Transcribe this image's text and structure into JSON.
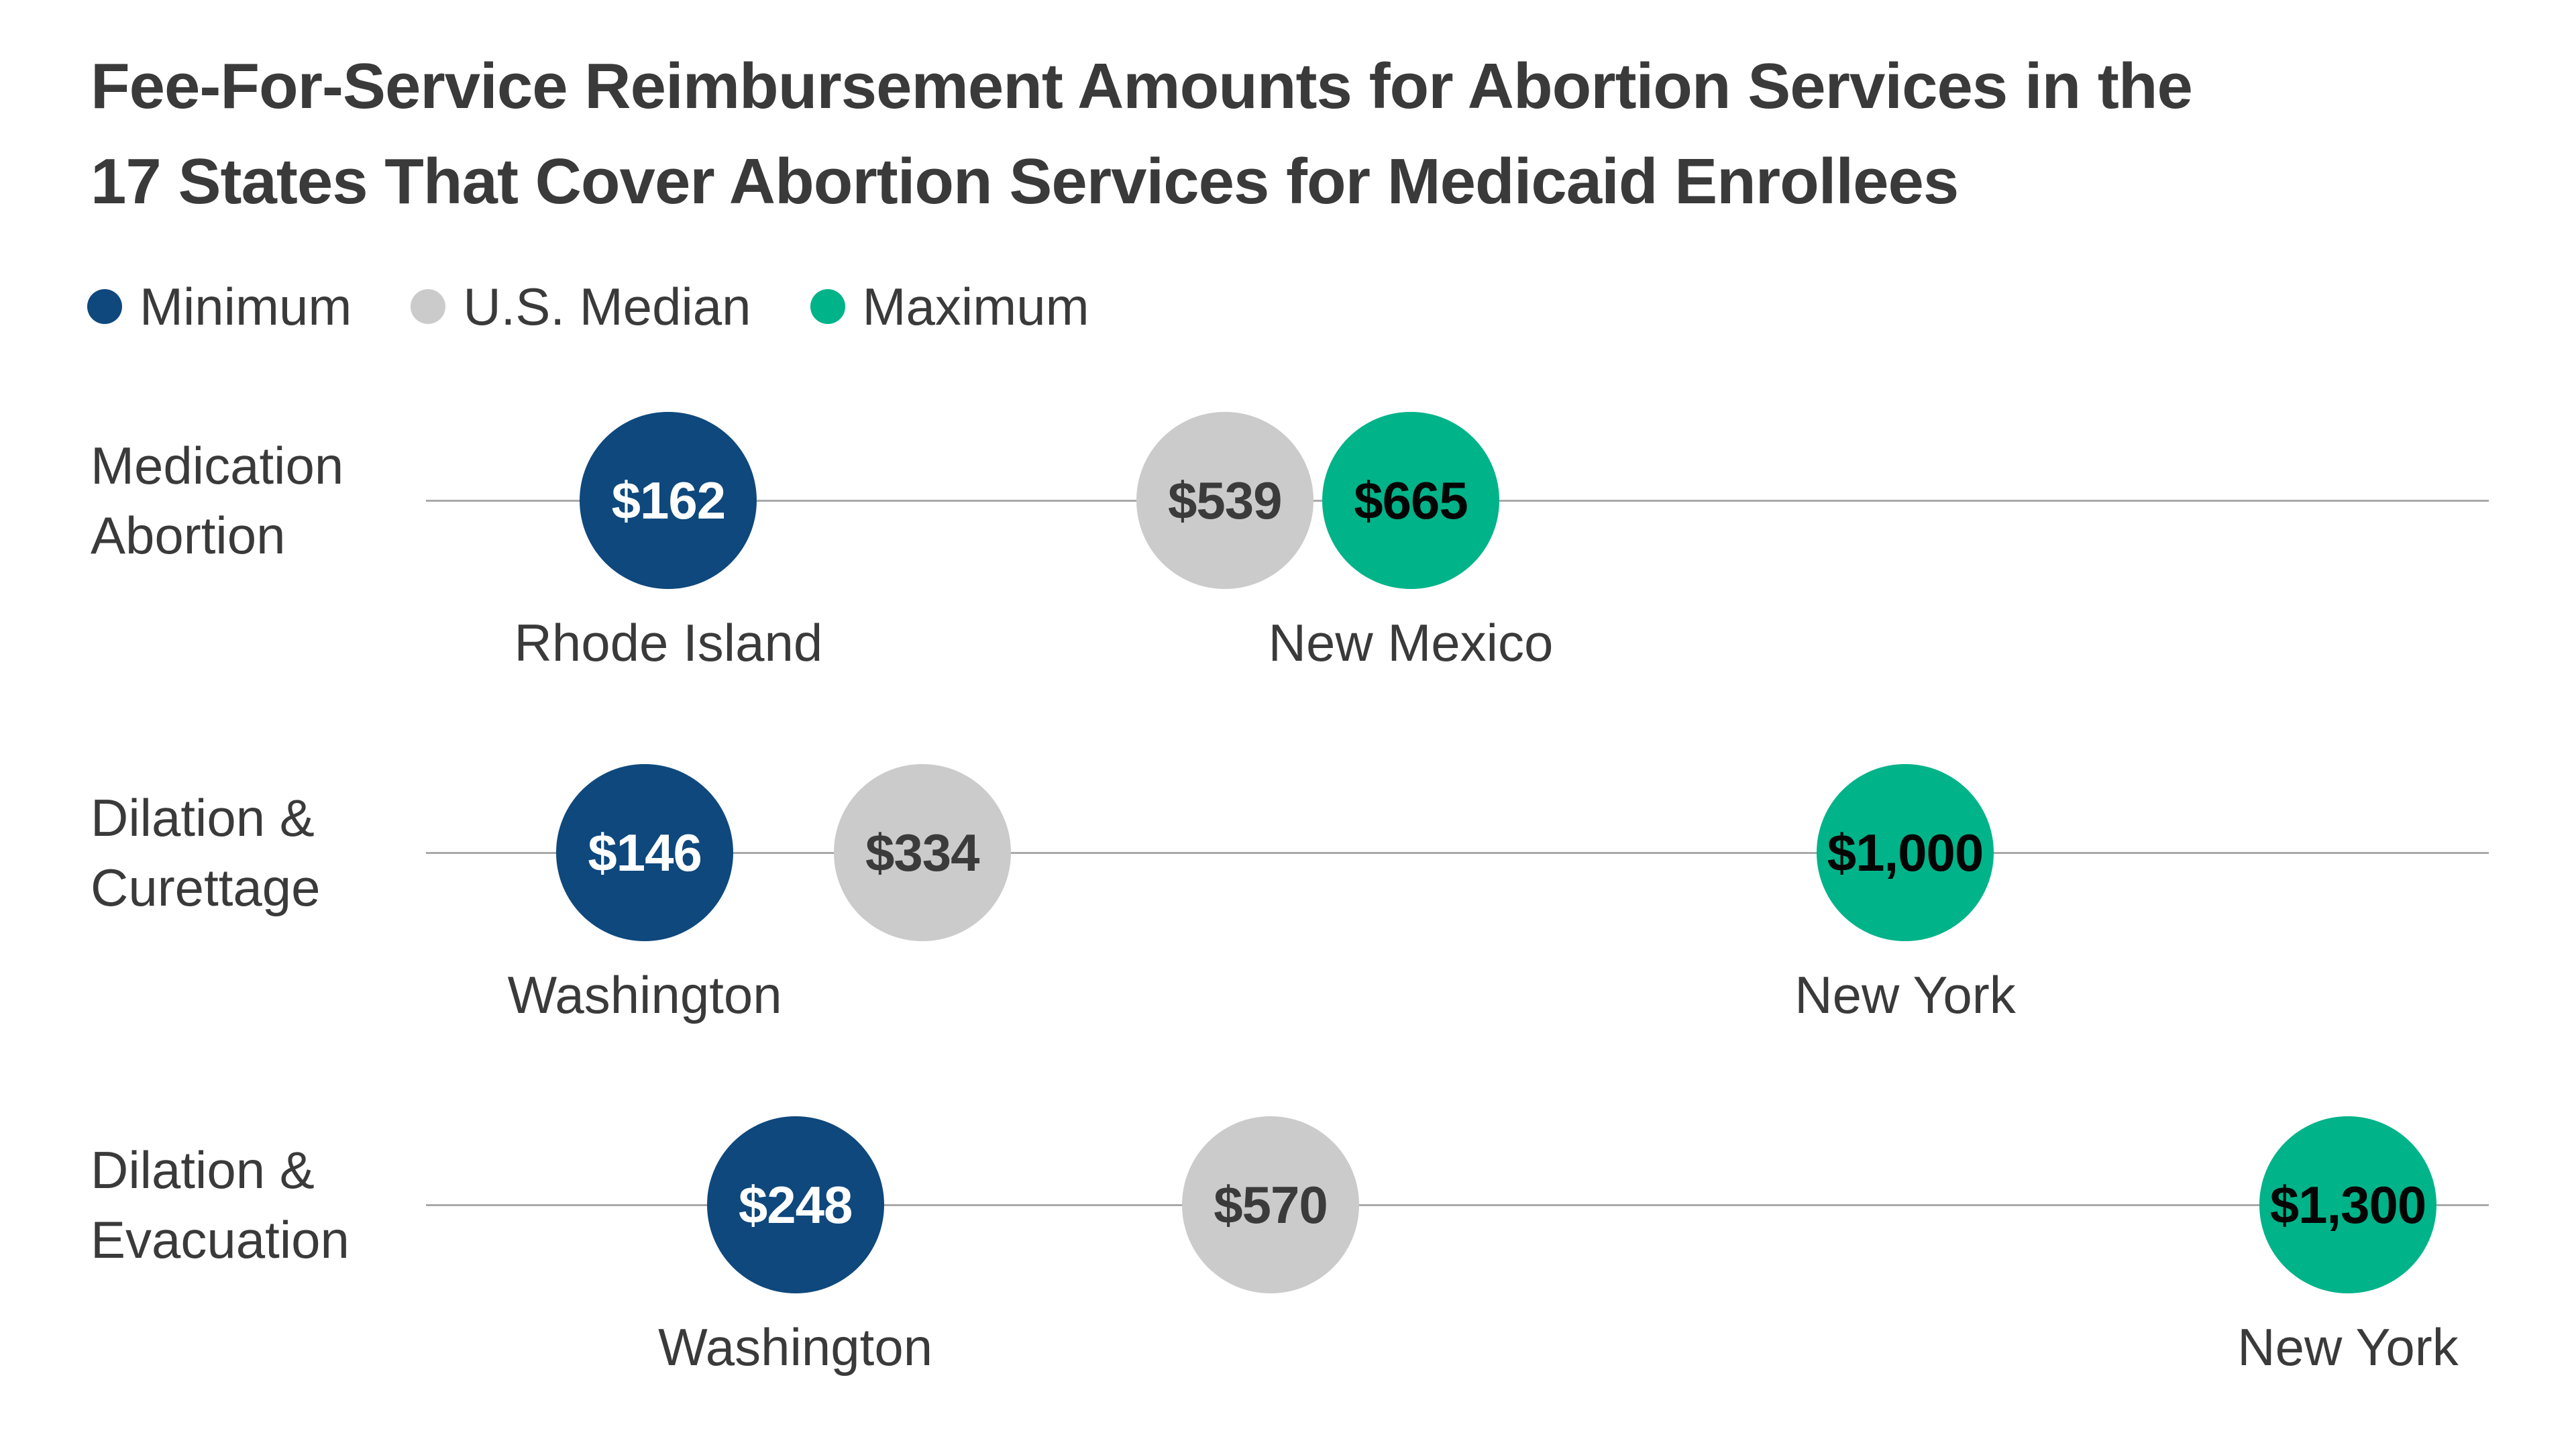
{
  "title": {
    "line1": "Fee-For-Service Reimbursement Amounts for Abortion Services in the",
    "line2": "17 States That Cover Abortion Services for Medicaid Enrollees"
  },
  "legend": {
    "items": [
      {
        "label": "Minimum",
        "color": "#0E487D"
      },
      {
        "label": "U.S. Median",
        "color": "#CBCBCB"
      },
      {
        "label": "Maximum",
        "color": "#00B389"
      }
    ]
  },
  "colors": {
    "background": "#FFFFFF",
    "text": "#3A3A3A",
    "gridline": "#A9A9A9",
    "minimum_fill": "#0E487D",
    "median_fill": "#CBCBCB",
    "maximum_fill": "#00B389",
    "value_text_on_minimum": "#FFFFFF",
    "value_text_on_median": "#3B3B3B",
    "value_text_on_maximum": "#050505"
  },
  "chart_data": {
    "type": "scatter",
    "subtype": "dot-plot",
    "title": "Fee-For-Service Reimbursement Amounts for Abortion Services in the 17 States That Cover Abortion Services for Medicaid Enrollees",
    "legend_entries": [
      "Minimum",
      "U.S. Median",
      "Maximum"
    ],
    "x_axis": {
      "unit": "USD",
      "min": 0,
      "max": 1400,
      "ticks_visible": false,
      "gridlines": false
    },
    "legend_position": "top-left",
    "rows": [
      {
        "category": "Medication Abortion",
        "category_lines": [
          "Medication",
          "Abortion"
        ],
        "points": [
          {
            "series": "Minimum",
            "value": 162,
            "value_label": "$162",
            "state": "Rhode Island"
          },
          {
            "series": "U.S. Median",
            "value": 539,
            "value_label": "$539"
          },
          {
            "series": "Maximum",
            "value": 665,
            "value_label": "$665",
            "state": "New Mexico"
          }
        ]
      },
      {
        "category": "Dilation & Curettage",
        "category_lines": [
          "Dilation &",
          "Curettage"
        ],
        "points": [
          {
            "series": "Minimum",
            "value": 146,
            "value_label": "$146",
            "state": "Washington"
          },
          {
            "series": "U.S. Median",
            "value": 334,
            "value_label": "$334"
          },
          {
            "series": "Maximum",
            "value": 1000,
            "value_label": "$1,000",
            "state": "New York"
          }
        ]
      },
      {
        "category": "Dilation & Evacuation",
        "category_lines": [
          "Dilation &",
          "Evacuation"
        ],
        "points": [
          {
            "series": "Minimum",
            "value": 248,
            "value_label": "$248",
            "state": "Washington"
          },
          {
            "series": "U.S. Median",
            "value": 570,
            "value_label": "$570"
          },
          {
            "series": "Maximum",
            "value": 1300,
            "value_label": "$1,300",
            "state": "New York"
          }
        ]
      }
    ]
  }
}
